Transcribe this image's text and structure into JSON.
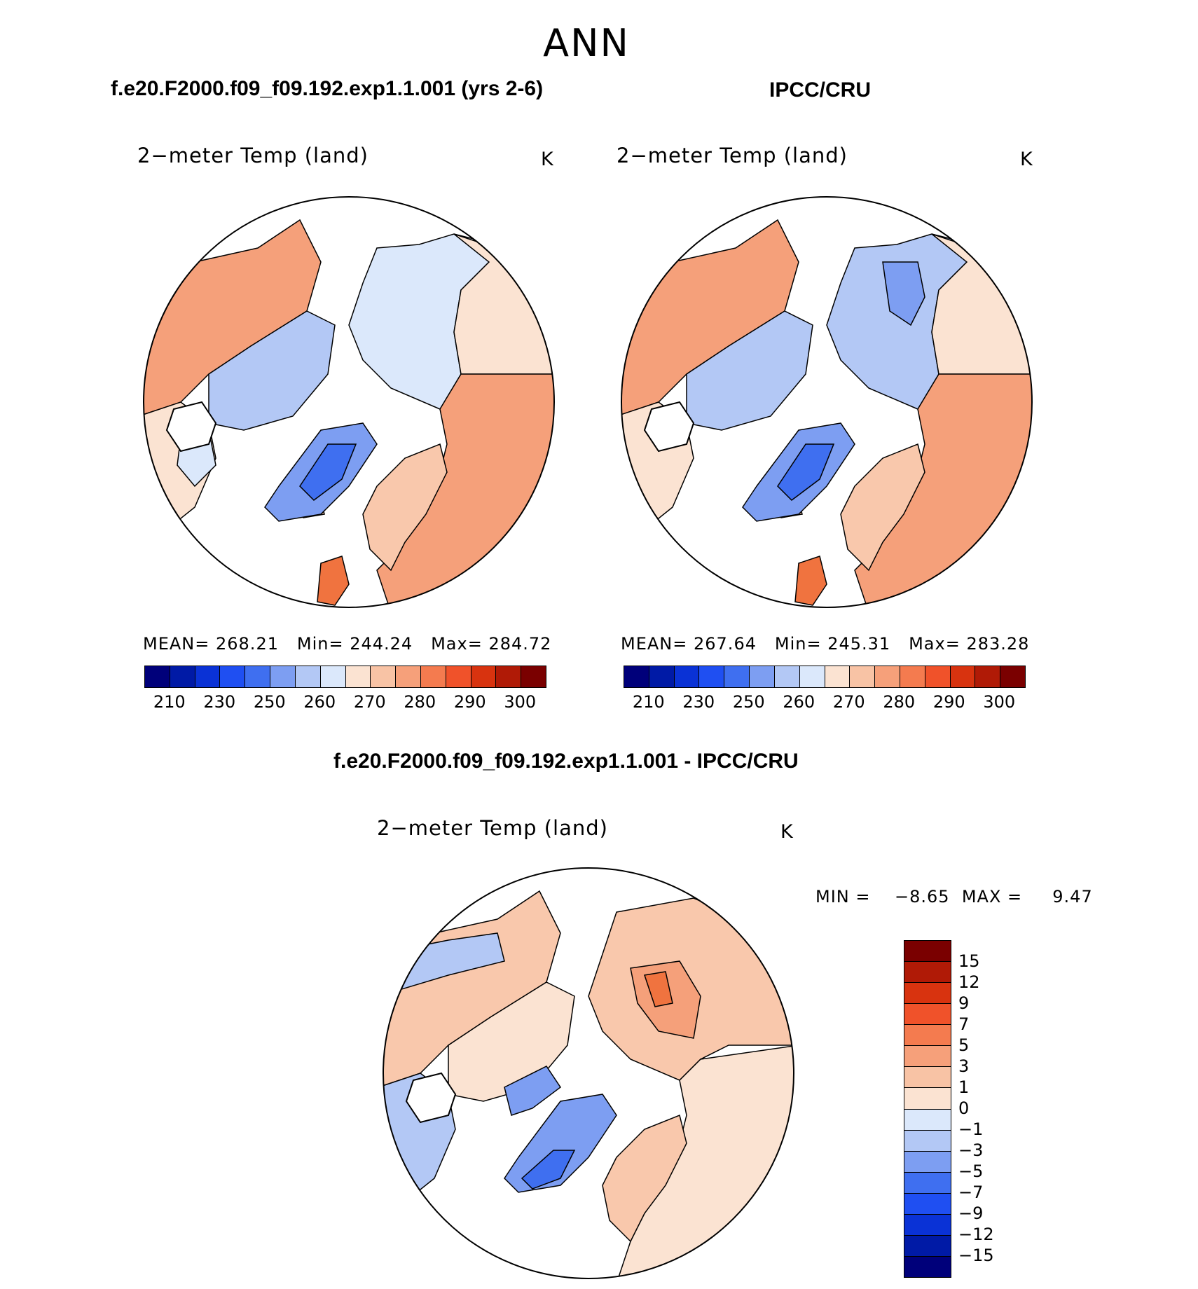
{
  "figure": {
    "season": "ANN"
  },
  "panels": {
    "model": {
      "case": "f.e20.F2000.f09_f09.192.exp1.1.001 (yrs 2-6)",
      "variable": "2−meter Temp (land)",
      "units": "K",
      "stats": {
        "mean_label": "MEAN=",
        "mean": "268.21",
        "min_label": "Min=",
        "min": "244.24",
        "max_label": "Max=",
        "max": "284.72"
      }
    },
    "obs": {
      "case": "IPCC/CRU",
      "variable": "2−meter Temp (land)",
      "units": "K",
      "stats": {
        "mean_label": "MEAN=",
        "mean": "267.64",
        "min_label": "Min=",
        "min": "245.31",
        "max_label": "Max=",
        "max": "283.28"
      }
    },
    "diff": {
      "case": "f.e20.F2000.f09_f09.192.exp1.1.001 - IPCC/CRU",
      "variable": "2−meter Temp (land)",
      "units": "K",
      "minmax": {
        "min_label": "MIN =",
        "min": "−8.65",
        "max_label": "MAX =",
        "max": "9.47"
      }
    }
  },
  "colorbars": {
    "abs": {
      "colors": [
        "#00007a",
        "#001aa6",
        "#0a32d6",
        "#1f4ff2",
        "#3f6ff0",
        "#7d9ef2",
        "#b3c8f5",
        "#dbe8fb",
        "#fbe3d2",
        "#f8c3a5",
        "#f6a07a",
        "#f47b4f",
        "#f0522a",
        "#d8330f",
        "#b01a06",
        "#7a0000"
      ],
      "labels": [
        "210",
        "230",
        "250",
        "260",
        "270",
        "280",
        "290",
        "300"
      ]
    },
    "diff": {
      "colors": [
        "#7a0000",
        "#b01a06",
        "#d8330f",
        "#f0522a",
        "#f47b4f",
        "#f6a07a",
        "#f8c3a5",
        "#fbe3d2",
        "#dbe8fb",
        "#b3c8f5",
        "#7d9ef2",
        "#3f6ff0",
        "#1f4ff2",
        "#0a32d6",
        "#001aa6",
        "#00007a"
      ],
      "labels": [
        "15",
        "12",
        "9",
        "7",
        "5",
        "3",
        "1",
        "0",
        "−1",
        "−3",
        "−5",
        "−7",
        "−9",
        "−12",
        "−15"
      ]
    }
  },
  "map_colors": {
    "warm_dark": "#f0733f",
    "warm_mid": "#f5a07a",
    "warm_light": "#f9c8ac",
    "warm_pale": "#fbe3d2",
    "cool_pale": "#dbe8fb",
    "cool_light": "#b3c8f5",
    "cool_mid": "#7d9ef2",
    "cool_dark": "#3f6ff0",
    "coast": "#000000"
  }
}
